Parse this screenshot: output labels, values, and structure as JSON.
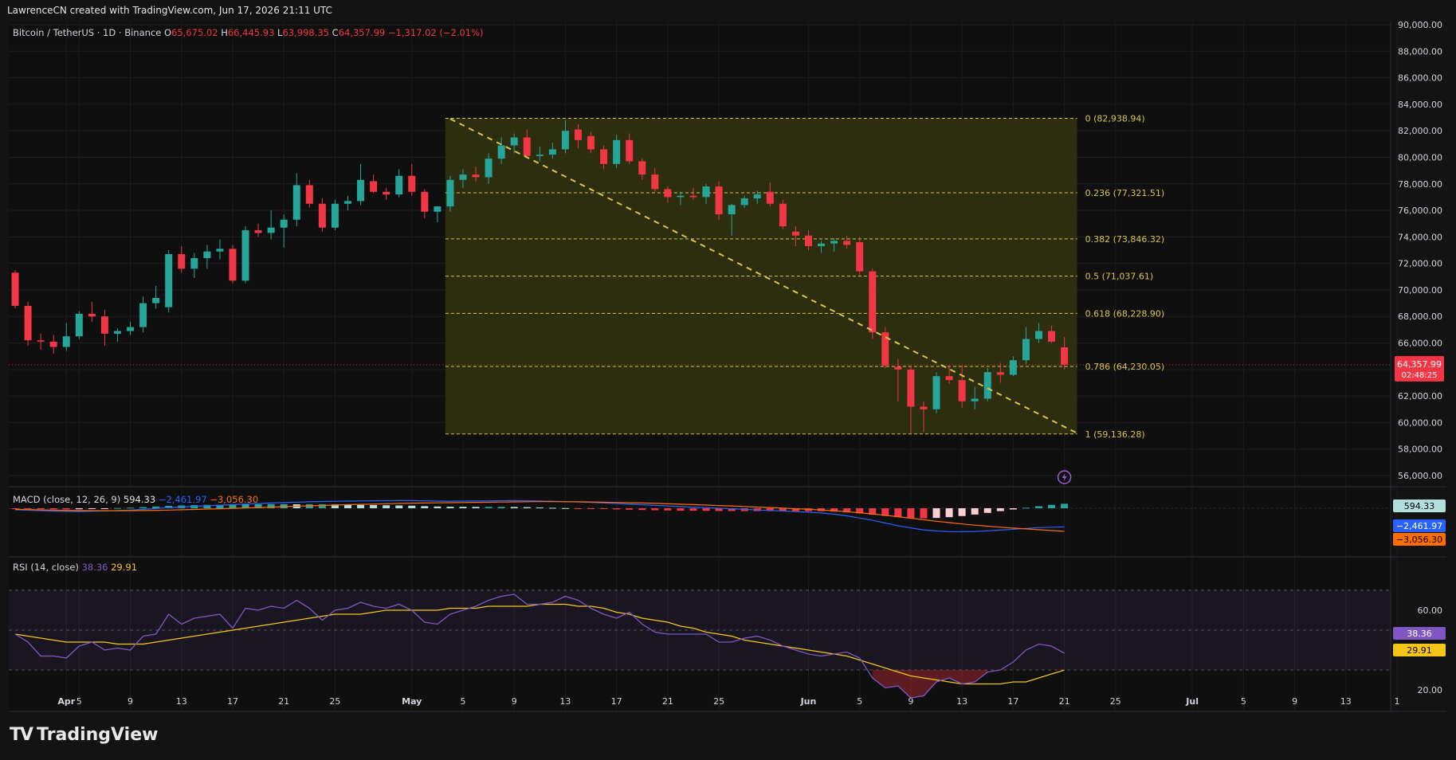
{
  "header": {
    "credit": "LawrenceCN created with TradingView.com, Jun 17, 2026 21:11 UTC"
  },
  "legend": {
    "symbol": "Bitcoin / TetherUS · 1D · Binance",
    "o_label": "O",
    "o": "65,675.02",
    "h_label": "H",
    "h": "66,445.93",
    "l_label": "L",
    "l": "63,998.35",
    "c_label": "C",
    "c": "64,357.99",
    "change": "−1,317.02 (−2.01%)"
  },
  "colors": {
    "up": "#26a69a",
    "down": "#f23645",
    "fib": "#d4c74a",
    "fib_fill": "#33330f",
    "bg": "#0f0f0f"
  },
  "price_badge": {
    "value": "64,357.99",
    "countdown": "02:48:25"
  },
  "macd": {
    "label": "MACD (close, 12, 26, 9)",
    "hist": "594.33",
    "macd": "−2,461.97",
    "signal": "−3,056.30",
    "badge_hist": "594.33",
    "badge_macd": "−2,461.97",
    "badge_signal": "−3,056.30"
  },
  "rsi": {
    "label": "RSI (14, close)",
    "rsi": "38.36",
    "ma": "29.91",
    "ticks": [
      "60.00",
      "20.00"
    ],
    "badge_rsi": "38.36",
    "badge_ma": "29.91"
  },
  "brand": {
    "name": "TradingView",
    "logo": "TV"
  },
  "chart_data": {
    "type": "candlestick",
    "symbol": "Bitcoin / TetherUS",
    "interval": "1D",
    "exchange": "Binance",
    "y_ticks": [
      "90,000.00",
      "88,000.00",
      "86,000.00",
      "84,000.00",
      "82,000.00",
      "80,000.00",
      "78,000.00",
      "76,000.00",
      "74,000.00",
      "72,000.00",
      "70,000.00",
      "68,000.00",
      "66,000.00",
      "64,000.00",
      "62,000.00",
      "60,000.00",
      "58,000.00",
      "56,000.00"
    ],
    "ylim": [
      55000,
      90500
    ],
    "x_ticks": [
      {
        "label": "Apr",
        "day": 4
      },
      {
        "label": "5",
        "day": 5
      },
      {
        "label": "9",
        "day": 9
      },
      {
        "label": "13",
        "day": 13
      },
      {
        "label": "17",
        "day": 17
      },
      {
        "label": "21",
        "day": 21
      },
      {
        "label": "25",
        "day": 25
      },
      {
        "label": "May",
        "day": 31
      },
      {
        "label": "5",
        "day": 35
      },
      {
        "label": "9",
        "day": 39
      },
      {
        "label": "13",
        "day": 43
      },
      {
        "label": "17",
        "day": 47
      },
      {
        "label": "21",
        "day": 51
      },
      {
        "label": "25",
        "day": 55
      },
      {
        "label": "Jun",
        "day": 62
      },
      {
        "label": "5",
        "day": 66
      },
      {
        "label": "9",
        "day": 70
      },
      {
        "label": "13",
        "day": 74
      },
      {
        "label": "17",
        "day": 78
      },
      {
        "label": "21",
        "day": 82
      },
      {
        "label": "25",
        "day": 86
      },
      {
        "label": "Jul",
        "day": 92
      },
      {
        "label": "5",
        "day": 96
      },
      {
        "label": "9",
        "day": 100
      },
      {
        "label": "13",
        "day": 104
      },
      {
        "label": "1",
        "day": 108
      }
    ],
    "day_axis_note": "day index counted from Mar 31 = 0",
    "candles": [
      {
        "day": 0,
        "o": 71300,
        "h": 71500,
        "l": 68600,
        "c": 68800
      },
      {
        "day": 1,
        "o": 68800,
        "h": 69100,
        "l": 65800,
        "c": 66200
      },
      {
        "day": 2,
        "o": 66200,
        "h": 66700,
        "l": 65500,
        "c": 66100
      },
      {
        "day": 3,
        "o": 66100,
        "h": 66600,
        "l": 65200,
        "c": 65700
      },
      {
        "day": 4,
        "o": 65700,
        "h": 67500,
        "l": 65400,
        "c": 66500
      },
      {
        "day": 5,
        "o": 66500,
        "h": 68400,
        "l": 66300,
        "c": 68200
      },
      {
        "day": 6,
        "o": 68200,
        "h": 69100,
        "l": 67600,
        "c": 68000
      },
      {
        "day": 7,
        "o": 68000,
        "h": 68500,
        "l": 65800,
        "c": 66700
      },
      {
        "day": 8,
        "o": 66700,
        "h": 67100,
        "l": 66100,
        "c": 66900
      },
      {
        "day": 9,
        "o": 66900,
        "h": 67600,
        "l": 66600,
        "c": 67200
      },
      {
        "day": 10,
        "o": 67200,
        "h": 69500,
        "l": 66800,
        "c": 69000
      },
      {
        "day": 11,
        "o": 69000,
        "h": 70300,
        "l": 68600,
        "c": 69400
      },
      {
        "day": 12,
        "o": 68700,
        "h": 73000,
        "l": 68300,
        "c": 72700
      },
      {
        "day": 13,
        "o": 72700,
        "h": 73300,
        "l": 71300,
        "c": 71600
      },
      {
        "day": 14,
        "o": 71600,
        "h": 72800,
        "l": 70900,
        "c": 72400
      },
      {
        "day": 15,
        "o": 72400,
        "h": 73400,
        "l": 71600,
        "c": 72900
      },
      {
        "day": 16,
        "o": 72900,
        "h": 73800,
        "l": 72300,
        "c": 73100
      },
      {
        "day": 17,
        "o": 73100,
        "h": 73400,
        "l": 70500,
        "c": 70700
      },
      {
        "day": 18,
        "o": 70700,
        "h": 74800,
        "l": 70500,
        "c": 74500
      },
      {
        "day": 19,
        "o": 74500,
        "h": 75000,
        "l": 74000,
        "c": 74300
      },
      {
        "day": 20,
        "o": 74300,
        "h": 76000,
        "l": 73800,
        "c": 74700
      },
      {
        "day": 21,
        "o": 74700,
        "h": 75700,
        "l": 73200,
        "c": 75300
      },
      {
        "day": 22,
        "o": 75300,
        "h": 78800,
        "l": 74800,
        "c": 77900
      },
      {
        "day": 23,
        "o": 77900,
        "h": 78300,
        "l": 76200,
        "c": 76500
      },
      {
        "day": 24,
        "o": 76500,
        "h": 76900,
        "l": 74400,
        "c": 74700
      },
      {
        "day": 25,
        "o": 74700,
        "h": 76800,
        "l": 74500,
        "c": 76500
      },
      {
        "day": 26,
        "o": 76500,
        "h": 77100,
        "l": 76000,
        "c": 76700
      },
      {
        "day": 27,
        "o": 76700,
        "h": 79500,
        "l": 76400,
        "c": 78300
      },
      {
        "day": 28,
        "o": 78200,
        "h": 78700,
        "l": 77300,
        "c": 77400
      },
      {
        "day": 29,
        "o": 77400,
        "h": 77700,
        "l": 76800,
        "c": 77200
      },
      {
        "day": 30,
        "o": 77200,
        "h": 79100,
        "l": 77000,
        "c": 78600
      },
      {
        "day": 31,
        "o": 78600,
        "h": 79500,
        "l": 77100,
        "c": 77400
      },
      {
        "day": 32,
        "o": 77400,
        "h": 77600,
        "l": 75400,
        "c": 75900
      },
      {
        "day": 33,
        "o": 75900,
        "h": 76300,
        "l": 75100,
        "c": 76300
      },
      {
        "day": 34,
        "o": 76300,
        "h": 78600,
        "l": 75900,
        "c": 78300
      },
      {
        "day": 35,
        "o": 78300,
        "h": 79100,
        "l": 77700,
        "c": 78700
      },
      {
        "day": 36,
        "o": 78700,
        "h": 79300,
        "l": 78200,
        "c": 78500
      },
      {
        "day": 37,
        "o": 78500,
        "h": 80300,
        "l": 78000,
        "c": 79900
      },
      {
        "day": 38,
        "o": 79900,
        "h": 81500,
        "l": 79500,
        "c": 80900
      },
      {
        "day": 39,
        "o": 80900,
        "h": 81800,
        "l": 80300,
        "c": 81500
      },
      {
        "day": 40,
        "o": 81500,
        "h": 82100,
        "l": 80200,
        "c": 80100
      },
      {
        "day": 41,
        "o": 80100,
        "h": 80800,
        "l": 79700,
        "c": 80200
      },
      {
        "day": 42,
        "o": 80200,
        "h": 81100,
        "l": 79900,
        "c": 80600
      },
      {
        "day": 43,
        "o": 80600,
        "h": 82800,
        "l": 80300,
        "c": 82000
      },
      {
        "day": 44,
        "o": 82100,
        "h": 82500,
        "l": 80700,
        "c": 81300
      },
      {
        "day": 45,
        "o": 81600,
        "h": 81900,
        "l": 80300,
        "c": 80600
      },
      {
        "day": 46,
        "o": 80600,
        "h": 80900,
        "l": 79100,
        "c": 79500
      },
      {
        "day": 47,
        "o": 79500,
        "h": 81700,
        "l": 79200,
        "c": 81300
      },
      {
        "day": 48,
        "o": 81300,
        "h": 81800,
        "l": 79500,
        "c": 79700
      },
      {
        "day": 49,
        "o": 79700,
        "h": 79900,
        "l": 78300,
        "c": 78700
      },
      {
        "day": 50,
        "o": 78700,
        "h": 79200,
        "l": 77400,
        "c": 77600
      },
      {
        "day": 51,
        "o": 77600,
        "h": 77800,
        "l": 76600,
        "c": 77000
      },
      {
        "day": 52,
        "o": 77000,
        "h": 77400,
        "l": 76400,
        "c": 77100
      },
      {
        "day": 53,
        "o": 77100,
        "h": 77700,
        "l": 76800,
        "c": 77000
      },
      {
        "day": 54,
        "o": 77000,
        "h": 78000,
        "l": 76500,
        "c": 77800
      },
      {
        "day": 55,
        "o": 77800,
        "h": 78200,
        "l": 75300,
        "c": 75700
      },
      {
        "day": 56,
        "o": 75700,
        "h": 76500,
        "l": 74100,
        "c": 76400
      },
      {
        "day": 57,
        "o": 76400,
        "h": 77100,
        "l": 76200,
        "c": 76900
      },
      {
        "day": 58,
        "o": 76900,
        "h": 77500,
        "l": 76500,
        "c": 77200
      },
      {
        "day": 59,
        "o": 77400,
        "h": 78100,
        "l": 76300,
        "c": 76500
      },
      {
        "day": 60,
        "o": 76500,
        "h": 76800,
        "l": 74600,
        "c": 74800
      },
      {
        "day": 61,
        "o": 74400,
        "h": 74800,
        "l": 73300,
        "c": 74100
      },
      {
        "day": 62,
        "o": 74100,
        "h": 74500,
        "l": 73000,
        "c": 73300
      },
      {
        "day": 63,
        "o": 73300,
        "h": 73700,
        "l": 72800,
        "c": 73500
      },
      {
        "day": 64,
        "o": 73500,
        "h": 73900,
        "l": 72900,
        "c": 73700
      },
      {
        "day": 65,
        "o": 73700,
        "h": 74100,
        "l": 73100,
        "c": 73400
      },
      {
        "day": 66,
        "o": 73600,
        "h": 74000,
        "l": 71100,
        "c": 71400
      },
      {
        "day": 67,
        "o": 71400,
        "h": 71600,
        "l": 66300,
        "c": 66800
      },
      {
        "day": 68,
        "o": 66800,
        "h": 67200,
        "l": 64100,
        "c": 64300
      },
      {
        "day": 69,
        "o": 64200,
        "h": 64800,
        "l": 61600,
        "c": 64000
      },
      {
        "day": 70,
        "o": 64000,
        "h": 64300,
        "l": 59200,
        "c": 61200
      },
      {
        "day": 71,
        "o": 61200,
        "h": 61600,
        "l": 59300,
        "c": 61000
      },
      {
        "day": 72,
        "o": 61000,
        "h": 63800,
        "l": 60700,
        "c": 63500
      },
      {
        "day": 73,
        "o": 63500,
        "h": 64300,
        "l": 62900,
        "c": 63200
      },
      {
        "day": 74,
        "o": 63200,
        "h": 64300,
        "l": 61100,
        "c": 61600
      },
      {
        "day": 75,
        "o": 61600,
        "h": 62700,
        "l": 61000,
        "c": 61800
      },
      {
        "day": 76,
        "o": 61800,
        "h": 64100,
        "l": 61600,
        "c": 63800
      },
      {
        "day": 77,
        "o": 63800,
        "h": 64500,
        "l": 63000,
        "c": 63600
      },
      {
        "day": 78,
        "o": 63600,
        "h": 65000,
        "l": 63500,
        "c": 64700
      },
      {
        "day": 79,
        "o": 64700,
        "h": 67200,
        "l": 64400,
        "c": 66300
      },
      {
        "day": 80,
        "o": 66300,
        "h": 67500,
        "l": 66000,
        "c": 66900
      },
      {
        "day": 81,
        "o": 66900,
        "h": 67300,
        "l": 66000,
        "c": 66100
      },
      {
        "day": 82,
        "o": 65675,
        "h": 66446,
        "l": 63998,
        "c": 64358
      }
    ],
    "fibonacci": {
      "start_day": 34,
      "end_day": 83,
      "levels": [
        {
          "ratio": "0",
          "price": 82938.94,
          "label": "0 (82,938.94)"
        },
        {
          "ratio": "0.236",
          "price": 77321.51,
          "label": "0.236 (77,321.51)"
        },
        {
          "ratio": "0.382",
          "price": 73846.32,
          "label": "0.382 (73,846.32)"
        },
        {
          "ratio": "0.5",
          "price": 71037.61,
          "label": "0.5 (71,037.61)"
        },
        {
          "ratio": "0.618",
          "price": 68228.9,
          "label": "0.618 (68,228.90)"
        },
        {
          "ratio": "0.786",
          "price": 64230.05,
          "label": "0.786 (64,230.05)"
        },
        {
          "ratio": "1",
          "price": 59136.28,
          "label": "1 (59,136.28)"
        }
      ]
    },
    "trendline": {
      "from": {
        "day": 34,
        "price": 82900
      },
      "to": {
        "day": 83,
        "price": 59200
      }
    },
    "current_price": 64357.99,
    "macd_series": {
      "macd": [
        -200,
        -250,
        -320,
        -380,
        -420,
        -430,
        -400,
        -350,
        -300,
        -240,
        -150,
        -40,
        80,
        170,
        260,
        340,
        410,
        480,
        560,
        620,
        690,
        750,
        800,
        850,
        900,
        930,
        950,
        970,
        990,
        1000,
        1010,
        1010,
        980,
        950,
        940,
        950,
        960,
        980,
        1000,
        1010,
        1000,
        970,
        930,
        880,
        830,
        770,
        700,
        620,
        540,
        460,
        380,
        300,
        220,
        150,
        80,
        0,
        -70,
        -150,
        -220,
        -290,
        -360,
        -440,
        -520,
        -620,
        -780,
        -1000,
        -1280,
        -1600,
        -1950,
        -2300,
        -2600,
        -2850,
        -3000,
        -3080,
        -3100,
        -3060,
        -2980,
        -2880,
        -2780,
        -2660,
        -2560,
        -2500,
        -2461.97
      ],
      "signal": [
        -150,
        -180,
        -210,
        -240,
        -270,
        -300,
        -320,
        -330,
        -330,
        -320,
        -300,
        -270,
        -240,
        -200,
        -160,
        -110,
        -60,
        -10,
        40,
        90,
        150,
        210,
        270,
        320,
        370,
        420,
        470,
        520,
        560,
        600,
        640,
        670,
        700,
        720,
        740,
        760,
        780,
        800,
        820,
        840,
        860,
        870,
        870,
        860,
        850,
        830,
        800,
        770,
        730,
        690,
        640,
        590,
        540,
        480,
        420,
        360,
        300,
        230,
        160,
        90,
        20,
        -60,
        -140,
        -230,
        -330,
        -450,
        -590,
        -750,
        -930,
        -1120,
        -1320,
        -1520,
        -1720,
        -1900,
        -2070,
        -2230,
        -2370,
        -2500,
        -2620,
        -2730,
        -2830,
        -2950,
        -3056.3
      ],
      "hist": [
        -50,
        -70,
        -110,
        -140,
        -150,
        -130,
        -80,
        -20,
        30,
        80,
        150,
        230,
        320,
        370,
        420,
        450,
        470,
        490,
        520,
        530,
        540,
        540,
        530,
        530,
        530,
        510,
        480,
        450,
        430,
        400,
        370,
        340,
        280,
        230,
        200,
        190,
        180,
        180,
        180,
        170,
        140,
        100,
        60,
        20,
        -20,
        -60,
        -100,
        -150,
        -190,
        -230,
        -260,
        -290,
        -320,
        -330,
        -340,
        -360,
        -370,
        -380,
        -380,
        -380,
        -380,
        -380,
        -380,
        -390,
        -450,
        -550,
        -690,
        -850,
        -1020,
        -1180,
        -1280,
        -1330,
        -1280,
        -1180,
        -1030,
        -830,
        -610,
        -380,
        -160,
        70,
        270,
        450,
        594.33
      ]
    },
    "rsi_series": {
      "rsi": [
        48,
        44,
        37,
        37,
        36,
        42,
        44,
        40,
        41,
        40,
        47,
        48,
        58,
        53,
        56,
        57,
        58,
        51,
        61,
        60,
        62,
        61,
        65,
        61,
        55,
        60,
        61,
        64,
        62,
        61,
        63,
        60,
        54,
        53,
        58,
        60,
        62,
        65,
        67,
        68,
        63,
        63,
        64,
        67,
        65,
        61,
        58,
        56,
        59,
        53,
        49,
        48,
        48,
        48,
        48,
        44,
        44,
        46,
        47,
        45,
        42,
        40,
        38,
        37,
        38,
        39,
        36,
        26,
        21,
        22,
        16,
        17,
        24,
        26,
        23,
        24,
        29,
        30,
        34,
        40,
        43,
        42,
        38.36
      ],
      "ma": [
        48,
        47,
        46,
        45,
        44,
        44,
        44,
        44,
        43,
        43,
        43,
        44,
        45,
        46,
        47,
        48,
        49,
        50,
        51,
        52,
        53,
        54,
        55,
        56,
        57,
        58,
        58,
        58,
        59,
        60,
        60,
        60,
        60,
        60,
        61,
        61,
        61,
        62,
        62,
        62,
        62,
        63,
        63,
        63,
        62,
        62,
        61,
        59,
        58,
        56,
        55,
        54,
        52,
        51,
        49,
        48,
        47,
        45,
        44,
        43,
        42,
        41,
        40,
        39,
        38,
        37,
        35,
        33,
        31,
        29,
        27,
        26,
        25,
        24,
        23,
        23,
        23,
        23,
        24,
        24,
        26,
        28,
        29.91
      ],
      "upper_band": 70,
      "mid_band": 50,
      "lower_band": 30
    }
  }
}
